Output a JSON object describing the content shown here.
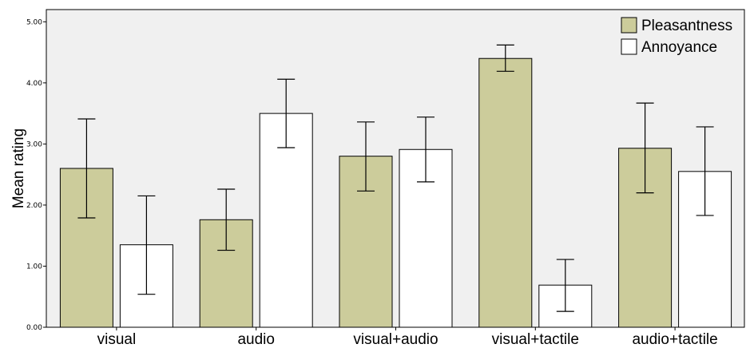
{
  "chart_data": {
    "type": "bar",
    "title": "",
    "xlabel": "",
    "ylabel": "Mean rating",
    "ylim": [
      0,
      5.2
    ],
    "yticks": [
      "0.00",
      "1.00",
      "2.00",
      "3.00",
      "4.00",
      "5.00"
    ],
    "categories": [
      "visual",
      "audio",
      "visual+audio",
      "visual+tactile",
      "audio+tactile"
    ],
    "series": [
      {
        "name": "Pleasantness",
        "color": "#cccc9b",
        "values": [
          2.6,
          1.76,
          2.8,
          4.4,
          2.93
        ],
        "error_low": [
          1.79,
          1.26,
          2.23,
          4.19,
          2.2
        ],
        "error_high": [
          3.41,
          2.26,
          3.36,
          4.62,
          3.67
        ]
      },
      {
        "name": "Annoyance",
        "color": "#ffffff",
        "values": [
          1.35,
          3.5,
          2.91,
          0.69,
          2.55
        ],
        "error_low": [
          0.54,
          2.94,
          2.38,
          0.26,
          1.83
        ],
        "error_high": [
          2.15,
          4.06,
          3.44,
          1.11,
          3.28
        ]
      }
    ],
    "plot_background": "#f0f0f0",
    "bar_stroke": "#000000",
    "legend_position": "top-right",
    "grid": false,
    "error_bars": true
  }
}
